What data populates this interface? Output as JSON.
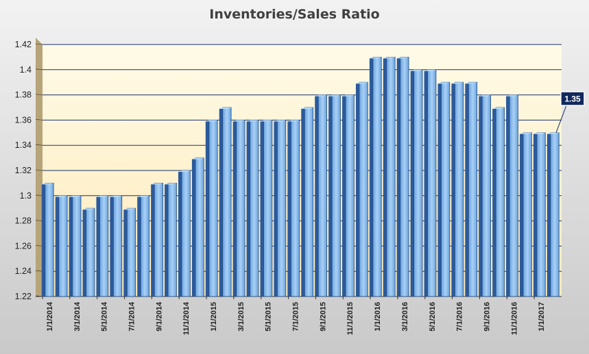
{
  "chart_data": {
    "type": "bar",
    "title": "Inventories/Sales Ratio",
    "xlabel": "",
    "ylabel": "",
    "ylim": [
      1.22,
      1.42
    ],
    "yticks": [
      "1.22",
      "1.24",
      "1.26",
      "1.28",
      "1.3",
      "1.32",
      "1.34",
      "1.36",
      "1.38",
      "1.4",
      "1.42"
    ],
    "grid": true,
    "categories": [
      "1/1/2014",
      "2/1/2014",
      "3/1/2014",
      "4/1/2014",
      "5/1/2014",
      "6/1/2014",
      "7/1/2014",
      "8/1/2014",
      "9/1/2014",
      "10/1/2014",
      "11/1/2014",
      "12/1/2014",
      "1/1/2015",
      "2/1/2015",
      "3/1/2015",
      "4/1/2015",
      "5/1/2015",
      "6/1/2015",
      "7/1/2015",
      "8/1/2015",
      "9/1/2015",
      "10/1/2015",
      "11/1/2015",
      "12/1/2015",
      "1/1/2016",
      "2/1/2016",
      "3/1/2016",
      "4/1/2016",
      "5/1/2016",
      "6/1/2016",
      "7/1/2016",
      "8/1/2016",
      "9/1/2016",
      "10/1/2016",
      "11/1/2016",
      "12/1/2016",
      "1/1/2017",
      "2/1/2017"
    ],
    "visible_tick_labels": [
      "1/1/2014",
      "3/1/2014",
      "5/1/2014",
      "7/1/2014",
      "9/1/2014",
      "11/1/2014",
      "1/1/2015",
      "3/1/2015",
      "5/1/2015",
      "7/1/2015",
      "9/1/2015",
      "11/1/2015",
      "1/1/2016",
      "3/1/2016",
      "5/1/2016",
      "7/1/2016",
      "9/1/2016",
      "11/1/2016",
      "1/1/2017"
    ],
    "values": [
      1.31,
      1.3,
      1.3,
      1.29,
      1.3,
      1.3,
      1.29,
      1.3,
      1.31,
      1.31,
      1.32,
      1.33,
      1.36,
      1.37,
      1.36,
      1.36,
      1.36,
      1.36,
      1.36,
      1.37,
      1.38,
      1.38,
      1.38,
      1.39,
      1.41,
      1.41,
      1.41,
      1.4,
      1.4,
      1.39,
      1.39,
      1.39,
      1.38,
      1.37,
      1.38,
      1.35,
      1.35,
      1.35
    ],
    "annotation": {
      "text": "1.35",
      "category": "2/1/2017"
    },
    "colors": {
      "bar_face": "#6aa3de",
      "bar_face_light": "#a9d0f5",
      "bar_side": "#2c5a9a",
      "bar_top": "#b7dbf9",
      "plot_bg_top": "#fffbe8",
      "plot_bg_bottom": "#fde9b8",
      "gridline": "#1a2f6a",
      "callout_bg": "#10285c"
    }
  }
}
